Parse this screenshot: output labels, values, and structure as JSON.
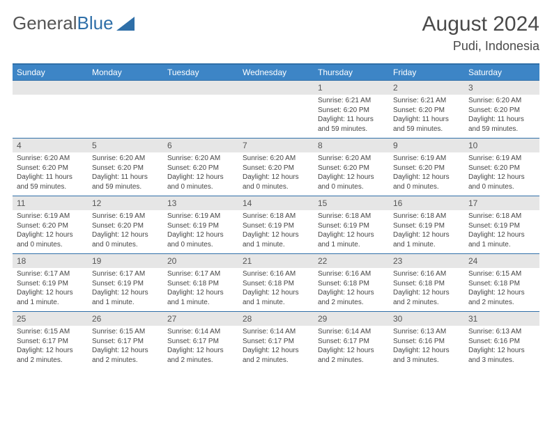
{
  "logo": {
    "text1": "General",
    "text2": "Blue"
  },
  "title": {
    "month": "August 2024",
    "location": "Pudi, Indonesia"
  },
  "colors": {
    "header_bg": "#3d85c6",
    "border": "#2f6fa8",
    "daynum_bg": "#e6e6e6",
    "text": "#444444"
  },
  "dow": [
    "Sunday",
    "Monday",
    "Tuesday",
    "Wednesday",
    "Thursday",
    "Friday",
    "Saturday"
  ],
  "weeks": [
    [
      {
        "n": "",
        "sr": "",
        "ss": "",
        "dl": ""
      },
      {
        "n": "",
        "sr": "",
        "ss": "",
        "dl": ""
      },
      {
        "n": "",
        "sr": "",
        "ss": "",
        "dl": ""
      },
      {
        "n": "",
        "sr": "",
        "ss": "",
        "dl": ""
      },
      {
        "n": "1",
        "sr": "Sunrise: 6:21 AM",
        "ss": "Sunset: 6:20 PM",
        "dl": "Daylight: 11 hours and 59 minutes."
      },
      {
        "n": "2",
        "sr": "Sunrise: 6:21 AM",
        "ss": "Sunset: 6:20 PM",
        "dl": "Daylight: 11 hours and 59 minutes."
      },
      {
        "n": "3",
        "sr": "Sunrise: 6:20 AM",
        "ss": "Sunset: 6:20 PM",
        "dl": "Daylight: 11 hours and 59 minutes."
      }
    ],
    [
      {
        "n": "4",
        "sr": "Sunrise: 6:20 AM",
        "ss": "Sunset: 6:20 PM",
        "dl": "Daylight: 11 hours and 59 minutes."
      },
      {
        "n": "5",
        "sr": "Sunrise: 6:20 AM",
        "ss": "Sunset: 6:20 PM",
        "dl": "Daylight: 11 hours and 59 minutes."
      },
      {
        "n": "6",
        "sr": "Sunrise: 6:20 AM",
        "ss": "Sunset: 6:20 PM",
        "dl": "Daylight: 12 hours and 0 minutes."
      },
      {
        "n": "7",
        "sr": "Sunrise: 6:20 AM",
        "ss": "Sunset: 6:20 PM",
        "dl": "Daylight: 12 hours and 0 minutes."
      },
      {
        "n": "8",
        "sr": "Sunrise: 6:20 AM",
        "ss": "Sunset: 6:20 PM",
        "dl": "Daylight: 12 hours and 0 minutes."
      },
      {
        "n": "9",
        "sr": "Sunrise: 6:19 AM",
        "ss": "Sunset: 6:20 PM",
        "dl": "Daylight: 12 hours and 0 minutes."
      },
      {
        "n": "10",
        "sr": "Sunrise: 6:19 AM",
        "ss": "Sunset: 6:20 PM",
        "dl": "Daylight: 12 hours and 0 minutes."
      }
    ],
    [
      {
        "n": "11",
        "sr": "Sunrise: 6:19 AM",
        "ss": "Sunset: 6:20 PM",
        "dl": "Daylight: 12 hours and 0 minutes."
      },
      {
        "n": "12",
        "sr": "Sunrise: 6:19 AM",
        "ss": "Sunset: 6:20 PM",
        "dl": "Daylight: 12 hours and 0 minutes."
      },
      {
        "n": "13",
        "sr": "Sunrise: 6:19 AM",
        "ss": "Sunset: 6:19 PM",
        "dl": "Daylight: 12 hours and 0 minutes."
      },
      {
        "n": "14",
        "sr": "Sunrise: 6:18 AM",
        "ss": "Sunset: 6:19 PM",
        "dl": "Daylight: 12 hours and 1 minute."
      },
      {
        "n": "15",
        "sr": "Sunrise: 6:18 AM",
        "ss": "Sunset: 6:19 PM",
        "dl": "Daylight: 12 hours and 1 minute."
      },
      {
        "n": "16",
        "sr": "Sunrise: 6:18 AM",
        "ss": "Sunset: 6:19 PM",
        "dl": "Daylight: 12 hours and 1 minute."
      },
      {
        "n": "17",
        "sr": "Sunrise: 6:18 AM",
        "ss": "Sunset: 6:19 PM",
        "dl": "Daylight: 12 hours and 1 minute."
      }
    ],
    [
      {
        "n": "18",
        "sr": "Sunrise: 6:17 AM",
        "ss": "Sunset: 6:19 PM",
        "dl": "Daylight: 12 hours and 1 minute."
      },
      {
        "n": "19",
        "sr": "Sunrise: 6:17 AM",
        "ss": "Sunset: 6:19 PM",
        "dl": "Daylight: 12 hours and 1 minute."
      },
      {
        "n": "20",
        "sr": "Sunrise: 6:17 AM",
        "ss": "Sunset: 6:18 PM",
        "dl": "Daylight: 12 hours and 1 minute."
      },
      {
        "n": "21",
        "sr": "Sunrise: 6:16 AM",
        "ss": "Sunset: 6:18 PM",
        "dl": "Daylight: 12 hours and 1 minute."
      },
      {
        "n": "22",
        "sr": "Sunrise: 6:16 AM",
        "ss": "Sunset: 6:18 PM",
        "dl": "Daylight: 12 hours and 2 minutes."
      },
      {
        "n": "23",
        "sr": "Sunrise: 6:16 AM",
        "ss": "Sunset: 6:18 PM",
        "dl": "Daylight: 12 hours and 2 minutes."
      },
      {
        "n": "24",
        "sr": "Sunrise: 6:15 AM",
        "ss": "Sunset: 6:18 PM",
        "dl": "Daylight: 12 hours and 2 minutes."
      }
    ],
    [
      {
        "n": "25",
        "sr": "Sunrise: 6:15 AM",
        "ss": "Sunset: 6:17 PM",
        "dl": "Daylight: 12 hours and 2 minutes."
      },
      {
        "n": "26",
        "sr": "Sunrise: 6:15 AM",
        "ss": "Sunset: 6:17 PM",
        "dl": "Daylight: 12 hours and 2 minutes."
      },
      {
        "n": "27",
        "sr": "Sunrise: 6:14 AM",
        "ss": "Sunset: 6:17 PM",
        "dl": "Daylight: 12 hours and 2 minutes."
      },
      {
        "n": "28",
        "sr": "Sunrise: 6:14 AM",
        "ss": "Sunset: 6:17 PM",
        "dl": "Daylight: 12 hours and 2 minutes."
      },
      {
        "n": "29",
        "sr": "Sunrise: 6:14 AM",
        "ss": "Sunset: 6:17 PM",
        "dl": "Daylight: 12 hours and 2 minutes."
      },
      {
        "n": "30",
        "sr": "Sunrise: 6:13 AM",
        "ss": "Sunset: 6:16 PM",
        "dl": "Daylight: 12 hours and 3 minutes."
      },
      {
        "n": "31",
        "sr": "Sunrise: 6:13 AM",
        "ss": "Sunset: 6:16 PM",
        "dl": "Daylight: 12 hours and 3 minutes."
      }
    ]
  ]
}
